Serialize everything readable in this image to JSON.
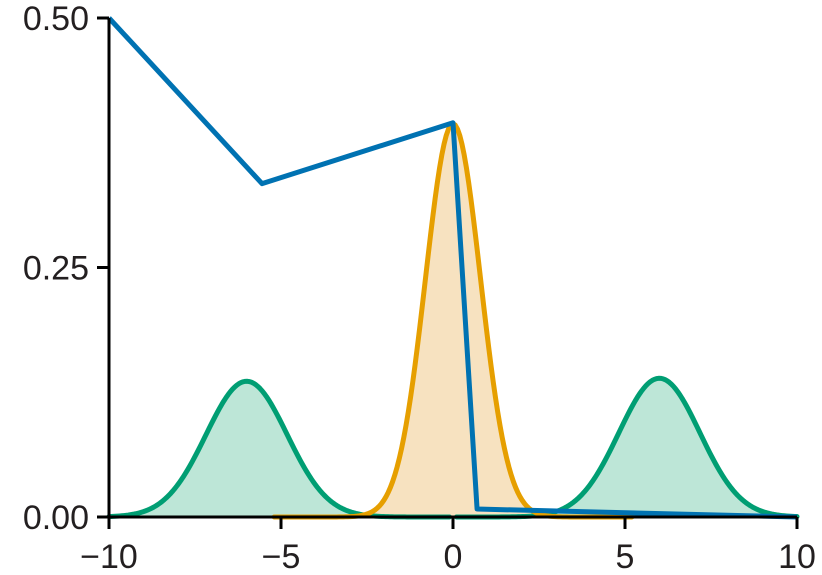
{
  "chart_data": {
    "type": "line",
    "title": "",
    "xlabel": "",
    "ylabel": "",
    "xlim": [
      -10,
      10
    ],
    "ylim": [
      0,
      0.5
    ],
    "x_ticks": [
      -10,
      -5,
      0,
      5,
      10
    ],
    "x_tick_labels": [
      "−10",
      "−5",
      "0",
      "5",
      "10"
    ],
    "y_ticks": [
      0,
      0.25,
      0.5
    ],
    "y_tick_labels": [
      "0.00",
      "0.25",
      "0.50"
    ],
    "grid": false,
    "legend": "none",
    "series": [
      {
        "kind": "area",
        "color": "#009e73",
        "fill": "#bde6d7",
        "components": [
          {
            "mean": -6,
            "sd": 1.18,
            "peak": 0.136
          },
          {
            "mean": 6,
            "sd": 1.18,
            "peak": 0.139
          }
        ]
      },
      {
        "kind": "area",
        "color": "#e69f00",
        "fill": "#f7e2c0",
        "x_range": [
          -5.2,
          5.2
        ],
        "components": [
          {
            "mean": 0,
            "sd": 0.8,
            "peak": 0.394
          }
        ]
      },
      {
        "kind": "line",
        "color": "#0072b2",
        "x": [
          -10,
          -5.55,
          0,
          0.7,
          10
        ],
        "y": [
          0.5,
          0.334,
          0.395,
          0.008,
          0.0
        ]
      }
    ]
  }
}
